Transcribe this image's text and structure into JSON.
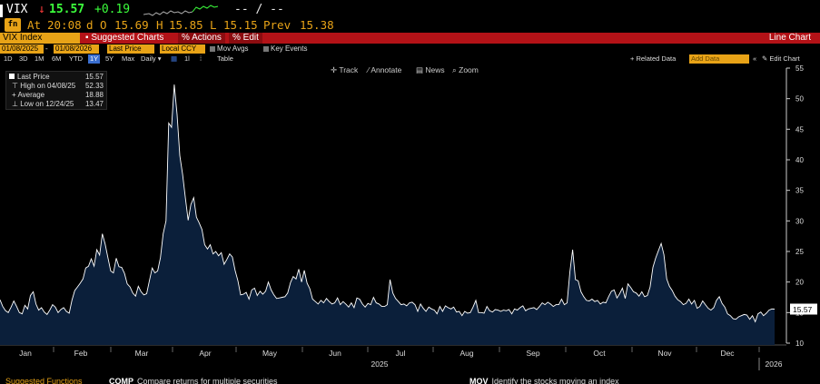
{
  "quote": {
    "ticker": "VIX",
    "arrow": "↓",
    "last": "15.57",
    "change": "+0.19",
    "bid_ask": "-- / --",
    "fn_badge": "fn",
    "at_label": "At",
    "time": "20:08",
    "d_label": "d",
    "open_label": "O",
    "open": "15.69",
    "high_label": "H",
    "high": "15.85",
    "low_label": "L",
    "low": "15.15",
    "prev_label": "Prev",
    "prev": "15.38",
    "colors": {
      "up": "#3cff3c",
      "down": "#ff3b3b",
      "accent": "#e8a317",
      "redbar": "#b31217",
      "series_fill": "#0b1f3a",
      "series_line": "#ffffff"
    }
  },
  "redbar": {
    "security": "VIX Index",
    "suggested_charts": "Suggested Charts",
    "actions": "Actions",
    "edit": "Edit",
    "view": "Line Chart"
  },
  "controls": {
    "start_date": "01/08/2025",
    "end_date": "01/08/2026",
    "last_price": "Last Price",
    "currency": "Local CCY",
    "mov_avgs": "Mov Avgs",
    "key_events": "Key Events"
  },
  "range": {
    "options": [
      "1D",
      "3D",
      "1M",
      "6M",
      "YTD",
      "1Y",
      "5Y",
      "Max"
    ],
    "selected": "1Y",
    "frequency": "Daily",
    "table": "Table",
    "related_data": "+ Related Data",
    "add_data_placeholder": "Add Data",
    "edit_chart": "Edit Chart"
  },
  "tools": {
    "track": "Track",
    "annotate": "Annotate",
    "news": "News",
    "zoom": "Zoom"
  },
  "legend": {
    "last_price_label": "Last Price",
    "last_price_value": "15.57",
    "high_label": "High on 04/08/25",
    "high_value": "52.33",
    "average_label": "Average",
    "average_value": "18.88",
    "low_label": "Low on 12/24/25",
    "low_value": "13.47"
  },
  "bottom": {
    "suggested": "Suggested Functions",
    "item1_code": "COMP",
    "item1_text": "Compare returns for multiple securities",
    "item2_code": "MOV",
    "item2_text": "Identify the stocks moving an index"
  },
  "chart_data": {
    "type": "area",
    "ylim": [
      10,
      55
    ],
    "yticks": [
      "10",
      "15",
      "20",
      "25",
      "30",
      "35",
      "40",
      "45",
      "50",
      "55"
    ],
    "months": [
      "Jan",
      "Feb",
      "Mar",
      "Apr",
      "May",
      "Jun",
      "Jul",
      "Aug",
      "Sep",
      "Oct",
      "Nov",
      "Dec"
    ],
    "year_labels": [
      "2025",
      "2026"
    ],
    "last_value_label": "15.57",
    "x_start": "2025-01-08",
    "x_end": "2026-01-08",
    "series": [
      {
        "values": [
          17.1,
          16.0,
          15.3,
          15.0,
          15.9,
          16.9,
          16.0,
          15.0,
          14.8,
          16.2,
          15.6,
          17.8,
          18.4,
          16.4,
          15.4,
          15.8,
          15.1,
          14.7,
          15.4,
          16.3,
          15.9,
          15.0,
          15.5,
          15.8,
          15.2,
          14.9,
          17.0,
          18.6,
          19.2,
          19.8,
          20.5,
          22.3,
          22.6,
          23.8,
          22.6,
          25.3,
          24.4,
          27.9,
          26.2,
          24.0,
          21.8,
          21.5,
          23.9,
          22.5,
          22.4,
          21.4,
          19.7,
          19.2,
          18.2,
          17.7,
          19.3,
          18.4,
          17.9,
          18.1,
          20.2,
          22.3,
          21.5,
          21.8,
          24.0,
          27.9,
          30.0,
          46.0,
          45.3,
          52.3,
          47.4,
          40.7,
          37.6,
          33.8,
          30.1,
          32.7,
          33.8,
          30.6,
          29.7,
          28.6,
          26.1,
          25.4,
          26.1,
          24.6,
          25.0,
          24.3,
          24.8,
          22.9,
          23.7,
          24.6,
          24.1,
          21.9,
          20.2,
          17.9,
          18.0,
          18.3,
          17.2,
          18.7,
          19.0,
          17.8,
          18.5,
          18.0,
          18.5,
          20.0,
          18.7,
          17.9,
          17.3,
          17.4,
          17.5,
          17.6,
          18.2,
          19.9,
          20.9,
          20.5,
          22.1,
          20.0,
          21.9,
          19.8,
          18.9,
          17.2,
          16.8,
          16.4,
          17.0,
          16.6,
          17.3,
          16.8,
          16.4,
          16.6,
          17.4,
          16.3,
          16.8,
          16.4,
          15.9,
          16.6,
          15.8,
          17.4,
          17.2,
          16.4,
          15.9,
          16.5,
          16.3,
          17.5,
          16.6,
          16.4,
          16.0,
          16.0,
          16.3,
          20.4,
          18.2,
          17.3,
          16.8,
          16.3,
          16.4,
          16.1,
          16.6,
          16.7,
          16.3,
          15.2,
          16.4,
          15.7,
          15.2,
          15.9,
          15.6,
          15.4,
          14.8,
          16.0,
          15.2,
          16.1,
          15.8,
          15.6,
          15.9,
          15.1,
          15.2,
          14.5,
          15.2,
          14.9,
          15.0,
          15.9,
          17.0,
          15.0,
          15.0,
          14.9,
          16.0,
          15.3,
          15.1,
          15.5,
          15.4,
          15.2,
          15.4,
          15.3,
          15.5,
          14.8,
          15.6,
          15.4,
          15.8,
          16.1,
          15.3,
          15.6,
          15.7,
          15.8,
          15.5,
          16.0,
          16.6,
          16.3,
          16.7,
          16.4,
          16.0,
          16.3,
          16.3,
          17.2,
          16.3,
          16.6,
          21.7,
          25.3,
          20.4,
          20.2,
          18.4,
          17.6,
          17.0,
          16.9,
          17.2,
          16.8,
          17.0,
          16.4,
          16.7,
          16.6,
          17.6,
          18.5,
          18.7,
          17.4,
          18.1,
          19.0,
          17.3,
          19.7,
          19.1,
          18.4,
          18.2,
          17.7,
          18.4,
          17.6,
          17.8,
          19.2,
          22.4,
          23.9,
          25.1,
          26.3,
          24.5,
          20.5,
          19.3,
          18.6,
          17.7,
          17.1,
          16.8,
          16.3,
          16.5,
          17.2,
          16.4,
          17.0,
          15.7,
          16.0,
          16.9,
          16.3,
          15.7,
          15.4,
          15.8,
          17.0,
          17.6,
          16.5,
          15.9,
          14.8,
          14.5,
          14.0,
          13.9,
          14.3,
          14.5,
          14.7,
          14.6,
          13.9,
          14.5,
          13.5,
          14.8,
          15.1,
          14.5,
          14.9,
          15.4,
          15.6,
          15.57
        ]
      }
    ]
  }
}
